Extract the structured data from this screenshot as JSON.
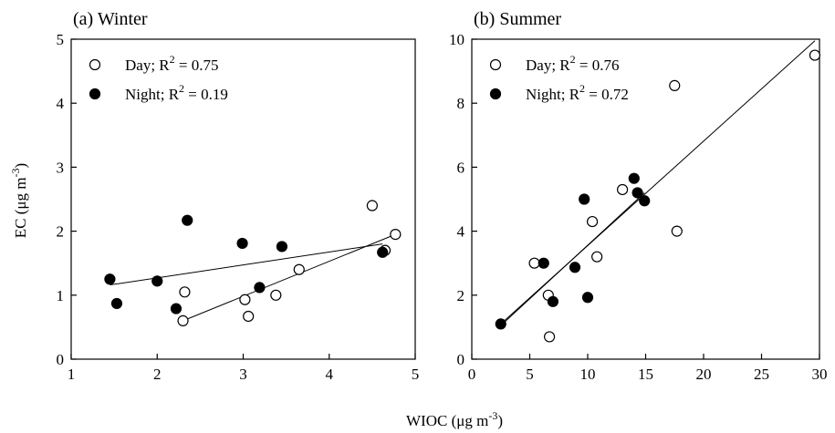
{
  "figure": {
    "xlabel": "WIOC (μg m",
    "xlabel_sup": "-3",
    "xlabel_end": ")",
    "ylabel": "EC (μg m",
    "ylabel_sup": "-3",
    "ylabel_end": ")"
  },
  "chart_data": [
    {
      "type": "scatter",
      "title": "(a) Winter",
      "xlim": [
        1,
        5
      ],
      "ylim": [
        0,
        5
      ],
      "xticks": [
        1,
        2,
        3,
        4,
        5
      ],
      "yticks": [
        0,
        1,
        2,
        3,
        4,
        5
      ],
      "legend_position": "top-left",
      "series": [
        {
          "name": "Day; R",
          "r2": "= 0.75",
          "marker": "open-circle",
          "points": [
            [
              2.3,
              0.6
            ],
            [
              2.32,
              1.05
            ],
            [
              3.02,
              0.93
            ],
            [
              3.06,
              0.67
            ],
            [
              3.38,
              1.0
            ],
            [
              3.65,
              1.4
            ],
            [
              4.5,
              2.4
            ],
            [
              4.65,
              1.7
            ],
            [
              4.77,
              1.95
            ]
          ],
          "fit": [
            [
              2.3,
              0.6
            ],
            [
              4.77,
              1.95
            ]
          ]
        },
        {
          "name": "Night; R",
          "r2": "= 0.19",
          "marker": "filled-circle",
          "points": [
            [
              1.45,
              1.25
            ],
            [
              1.53,
              0.87
            ],
            [
              2.0,
              1.22
            ],
            [
              2.22,
              0.79
            ],
            [
              2.35,
              2.17
            ],
            [
              2.99,
              1.81
            ],
            [
              3.19,
              1.12
            ],
            [
              3.45,
              1.76
            ],
            [
              4.62,
              1.67
            ]
          ],
          "fit": [
            [
              1.45,
              1.16
            ],
            [
              4.62,
              1.8
            ]
          ]
        }
      ]
    },
    {
      "type": "scatter",
      "title": "(b) Summer",
      "xlim": [
        0,
        30
      ],
      "ylim": [
        0,
        10
      ],
      "xticks": [
        0,
        5,
        10,
        15,
        20,
        25,
        30
      ],
      "yticks": [
        0,
        2,
        4,
        6,
        8,
        10
      ],
      "legend_position": "top-left",
      "series": [
        {
          "name": "Day; R",
          "r2": "= 0.76",
          "marker": "open-circle",
          "points": [
            [
              5.4,
              3.0
            ],
            [
              6.6,
              2.0
            ],
            [
              6.7,
              0.7
            ],
            [
              10.4,
              4.3
            ],
            [
              10.8,
              3.2
            ],
            [
              13.0,
              5.3
            ],
            [
              17.5,
              8.55
            ],
            [
              17.7,
              4.0
            ],
            [
              29.6,
              9.5
            ]
          ],
          "fit": [
            [
              2.5,
              1.1
            ],
            [
              29.6,
              9.95
            ]
          ]
        },
        {
          "name": "Night; R",
          "r2": "= 0.72",
          "marker": "filled-circle",
          "points": [
            [
              2.5,
              1.1
            ],
            [
              6.2,
              3.0
            ],
            [
              7.0,
              1.8
            ],
            [
              8.9,
              2.87
            ],
            [
              9.7,
              5.0
            ],
            [
              10.0,
              1.93
            ],
            [
              14.0,
              5.65
            ],
            [
              14.3,
              5.2
            ],
            [
              14.9,
              4.95
            ]
          ],
          "fit": [
            [
              2.5,
              1.05
            ],
            [
              14.9,
              5.2
            ]
          ]
        }
      ]
    }
  ]
}
